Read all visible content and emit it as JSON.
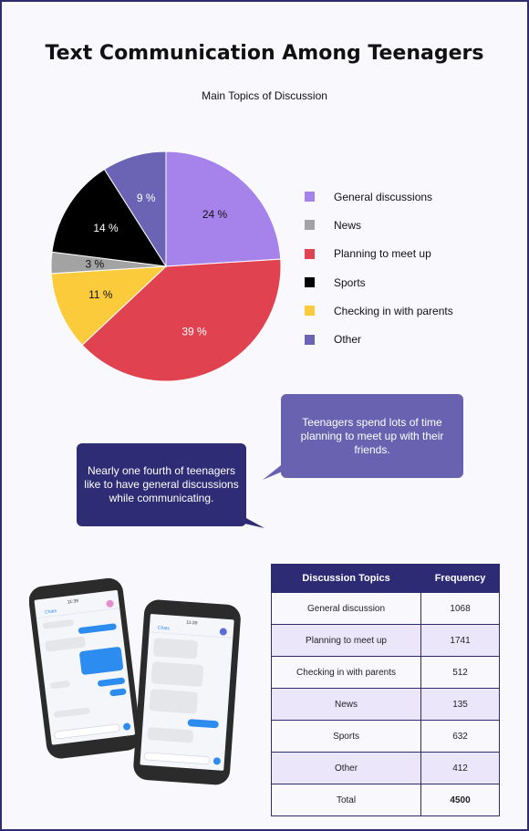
{
  "title": "Text Communication Among Teenagers",
  "colors": {
    "frame": "#2e2b6e",
    "bubble_light": "#6862b0",
    "bubble_dark": "#2e2c74",
    "table_header": "#2e2b75",
    "table_alt_row": "#ece6fb"
  },
  "chart_data": {
    "type": "pie",
    "title": "Main Topics of Discussion",
    "legend_position": "right",
    "slices": [
      {
        "label": "General discussions",
        "value": 24,
        "display": "24 %",
        "color": "#a683ea"
      },
      {
        "label": "News",
        "value": 3,
        "display": "3 %",
        "color": "#a3a3a3"
      },
      {
        "label": "Planning to meet up",
        "value": 39,
        "display": "39 %",
        "color": "#e0434f"
      },
      {
        "label": "Sports",
        "value": 14,
        "display": "14 %",
        "color": "#000000"
      },
      {
        "label": "Checking in with parents",
        "value": 11,
        "display": "11 %",
        "color": "#fccb3c"
      },
      {
        "label": "Other",
        "value": 9,
        "display": "9 %",
        "color": "#6b64b4"
      }
    ],
    "draw_order": [
      "General discussions",
      "Planning to meet up",
      "Checking in with parents",
      "News",
      "Sports",
      "Other"
    ]
  },
  "bubbles": {
    "right": "Teenagers spend lots of time planning to meet up with their friends.",
    "left": "Nearly one fourth of teenagers like to have general discussions while communicating."
  },
  "phones": {
    "phone1": {
      "time": "11:39",
      "back": "Chats",
      "input_hint": "iO"
    },
    "phone2": {
      "time": "11:39",
      "back": "Chats",
      "input_hint": "iO"
    }
  },
  "table": {
    "headers": [
      "Discussion Topics",
      "Frequency"
    ],
    "rows": [
      {
        "topic": "General discussion",
        "frequency": "1068"
      },
      {
        "topic": "Planning to meet up",
        "frequency": "1741"
      },
      {
        "topic": "Checking in with parents",
        "frequency": "512"
      },
      {
        "topic": "News",
        "frequency": "135"
      },
      {
        "topic": "Sports",
        "frequency": "632"
      },
      {
        "topic": "Other",
        "frequency": "412"
      }
    ],
    "total": {
      "topic": "Total",
      "frequency": "4500"
    }
  }
}
